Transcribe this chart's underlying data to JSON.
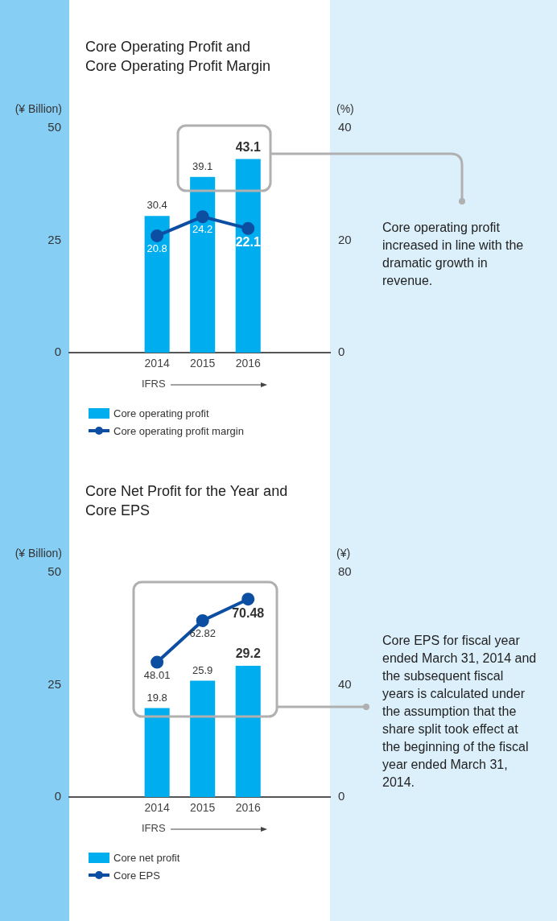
{
  "chart_data": [
    {
      "type": "bar",
      "title": "Core Operating Profit and\nCore Operating Profit Margin",
      "ylabel": "(¥ Billion)",
      "y2label": "(%)",
      "categories": [
        "2014",
        "2015",
        "2016"
      ],
      "ylim": [
        0,
        50
      ],
      "yticks": [
        0,
        25,
        50
      ],
      "y2lim": [
        0,
        40
      ],
      "y2ticks": [
        0,
        20,
        40
      ],
      "series": [
        {
          "name": "Core operating profit",
          "color": "#00aeef",
          "values": [
            30.4,
            39.1,
            43.1
          ]
        },
        {
          "name": "Core operating profit margin",
          "type": "line",
          "axis": "y2",
          "color": "#0b4ea2",
          "values": [
            20.8,
            24.2,
            22.1
          ]
        }
      ],
      "marker": "circle",
      "data_labels": true,
      "legend": "bottom left",
      "grid": false,
      "annotations": [
        "IFRS",
        "Core operating profit increased in line with the dramatic growth in revenue."
      ]
    },
    {
      "type": "bar",
      "title": "Core Net Profit for the Year and\nCore EPS",
      "ylabel": "(¥ Billion)",
      "y2label": "(¥)",
      "categories": [
        "2014",
        "2015",
        "2016"
      ],
      "ylim": [
        0,
        50
      ],
      "yticks": [
        0,
        25,
        50
      ],
      "y2lim": [
        0,
        80
      ],
      "y2ticks": [
        0,
        40,
        80
      ],
      "series": [
        {
          "name": "Core net profit",
          "color": "#00aeef",
          "values": [
            19.8,
            25.9,
            29.2
          ]
        },
        {
          "name": "Core EPS",
          "type": "line",
          "axis": "y2",
          "color": "#0b4ea2",
          "values": [
            48.01,
            62.82,
            70.48
          ]
        }
      ],
      "marker": "circle",
      "data_labels": true,
      "legend": "bottom left",
      "grid": false,
      "annotations": [
        "IFRS",
        "Core EPS for fiscal year ended March 31, 2014 and the subsequent fiscal years is calculated under the assumption that the share split took effect at the beginning of the fiscal year ended March 31, 2014."
      ]
    }
  ]
}
